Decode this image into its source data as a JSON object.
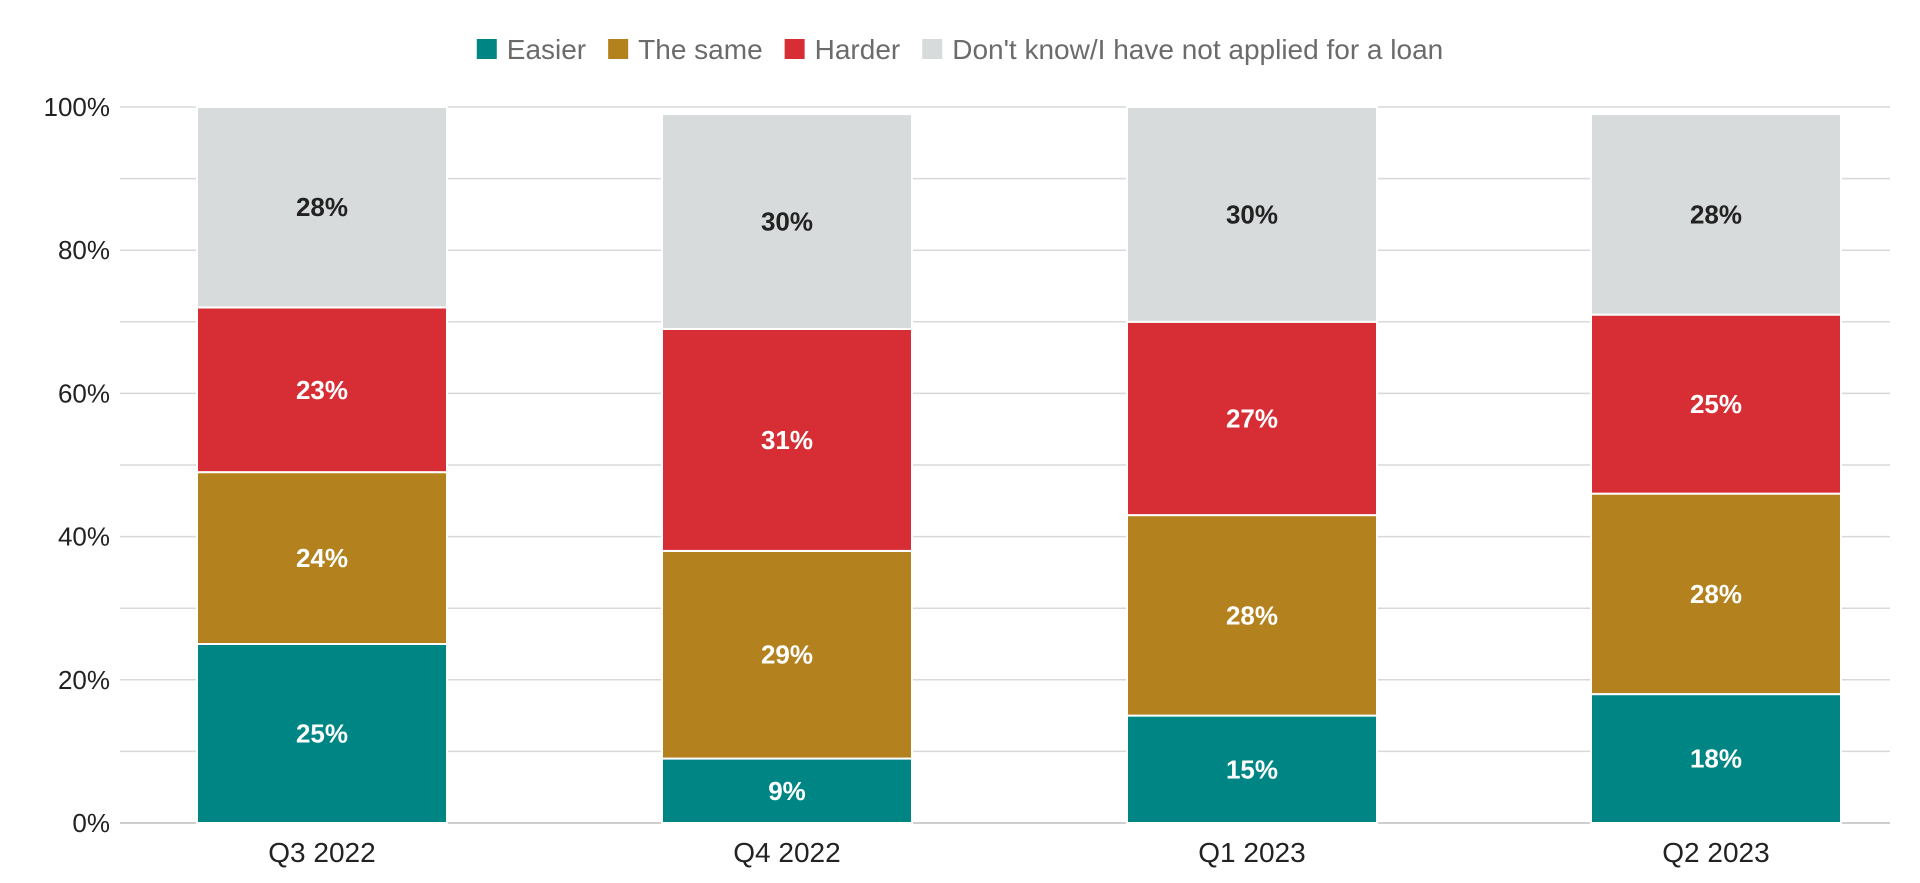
{
  "chart_data": {
    "type": "bar",
    "stacked": true,
    "categories": [
      "Q3 2022",
      "Q4 2022",
      "Q1 2023",
      "Q2 2023"
    ],
    "series": [
      {
        "name": "Easier",
        "color": "#008585",
        "label_color": "#ffffff",
        "values": [
          25,
          9,
          15,
          18
        ]
      },
      {
        "name": "The same",
        "color": "#B3811E",
        "label_color": "#ffffff",
        "values": [
          24,
          29,
          28,
          28
        ]
      },
      {
        "name": "Harder",
        "color": "#D72E35",
        "label_color": "#ffffff",
        "values": [
          23,
          31,
          27,
          25
        ]
      },
      {
        "name": "Don't know/I have not applied for a loan",
        "color": "#D7DBDB",
        "label_color": "#222222",
        "values": [
          28,
          30,
          30,
          28
        ]
      }
    ],
    "data_labels": [
      [
        "25%",
        "9%",
        "15%",
        "18%"
      ],
      [
        "24%",
        "29%",
        "28%",
        "28%"
      ],
      [
        "23%",
        "31%",
        "27%",
        "25%"
      ],
      [
        "28%",
        "30%",
        "30%",
        "28%"
      ]
    ],
    "y_ticks": [
      "0%",
      "20%",
      "40%",
      "60%",
      "80%",
      "100%"
    ],
    "y_tick_values": [
      0,
      20,
      40,
      60,
      80,
      100
    ],
    "ylim": [
      0,
      100
    ],
    "minor_gridlines_every": 10,
    "grid": true,
    "legend": "top-center",
    "title": "",
    "xlabel": "",
    "ylabel": ""
  }
}
